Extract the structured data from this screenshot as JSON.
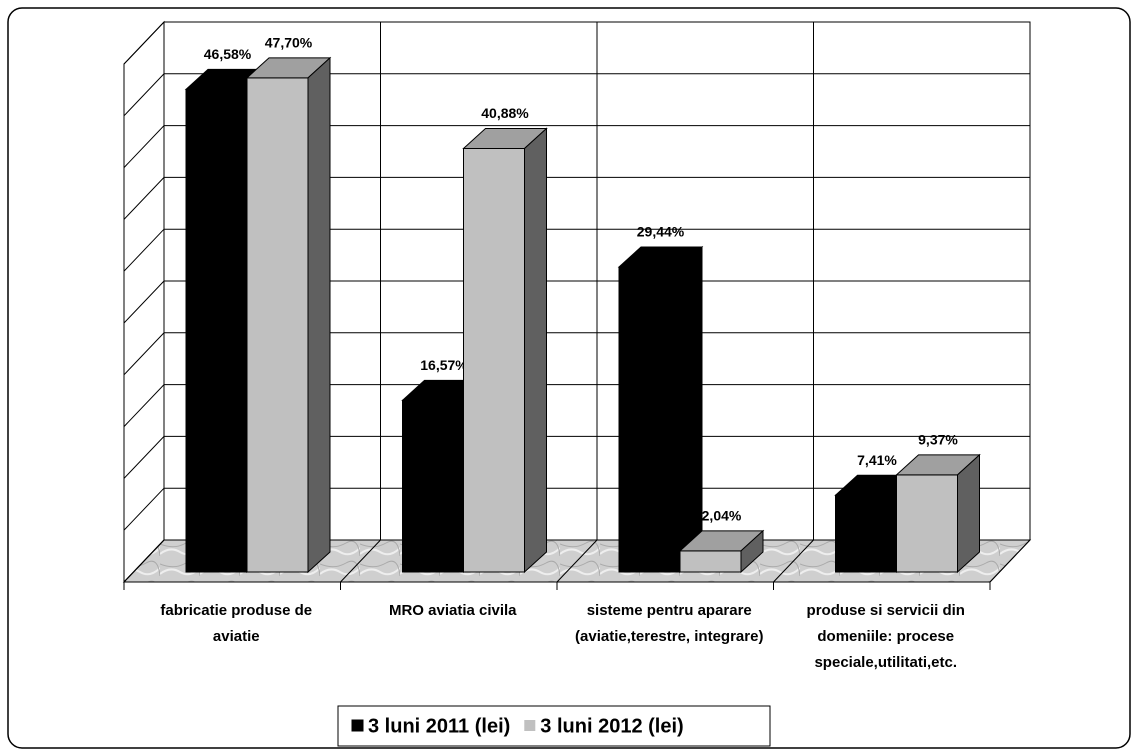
{
  "chart_data": {
    "type": "bar3d",
    "categories": [
      "fabricatie produse de aviatie",
      "MRO aviatia civila",
      "sisteme pentru aparare (aviatie,terestre, integrare)",
      "produse si servicii din domeniile: procese speciale,utilitati,etc."
    ],
    "series": [
      {
        "name": "3 luni 2011 (lei)",
        "color": "#000000",
        "values": [
          46.58,
          16.57,
          29.44,
          7.41
        ],
        "value_labels": [
          "46,58%",
          "16,57%",
          "29,44%",
          "7,41%"
        ]
      },
      {
        "name": "3 luni 2012 (lei)",
        "color": "#c0c0c0",
        "values": [
          47.7,
          40.88,
          2.04,
          9.37
        ],
        "value_labels": [
          "47,70%",
          "40,88%",
          "2,04%",
          "9,37%"
        ]
      }
    ],
    "ylim": [
      0,
      50
    ],
    "yticks": [
      0,
      5,
      10,
      15,
      20,
      25,
      30,
      35,
      40,
      45,
      50
    ],
    "grid": true,
    "legend": "bottom"
  }
}
